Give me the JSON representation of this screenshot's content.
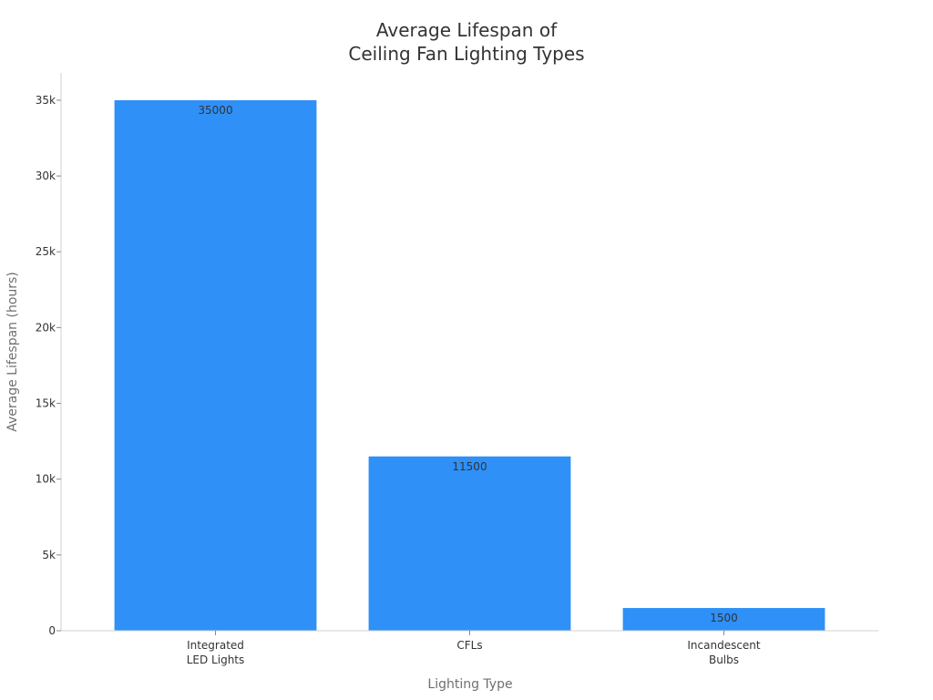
{
  "chart_data": {
    "type": "bar",
    "title_lines": [
      "Average Lifespan of",
      "Ceiling Fan Lighting Types"
    ],
    "xlabel": "Lighting Type",
    "ylabel": "Average Lifespan (hours)",
    "categories": [
      [
        "Integrated",
        "LED Lights"
      ],
      [
        "CFLs"
      ],
      [
        "Incandescent",
        "Bulbs"
      ]
    ],
    "values": [
      35000,
      11500,
      1500
    ],
    "data_labels": [
      "35000",
      "11500",
      "1500"
    ],
    "ylim": [
      0,
      36800
    ],
    "yticks": [
      0,
      5000,
      10000,
      15000,
      20000,
      25000,
      30000,
      35000
    ],
    "ytick_labels": [
      "0",
      "5k",
      "10k",
      "15k",
      "20k",
      "25k",
      "30k",
      "35k"
    ],
    "bar_color": "#2f90f7",
    "grid": false,
    "legend": "none"
  }
}
